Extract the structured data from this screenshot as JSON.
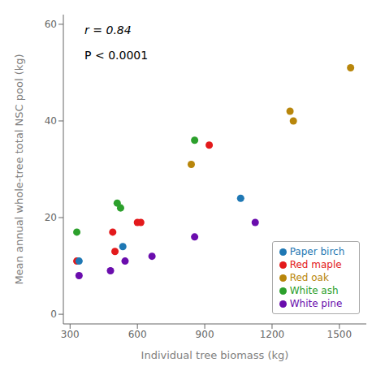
{
  "chart_data": {
    "type": "scatter",
    "xlabel": "Individual tree biomass (kg)",
    "ylabel": "Mean annual whole-tree total NSC pool (kg)",
    "annotations": [
      "r = 0.84",
      "P < 0.0001"
    ],
    "xlim": [
      270,
      1620
    ],
    "ylim": [
      -2,
      62
    ],
    "xticks": [
      300,
      600,
      900,
      1200,
      1500
    ],
    "yticks": [
      0,
      20,
      40,
      60
    ],
    "grid": false,
    "legend": "lower right",
    "series": [
      {
        "name": "Red oak",
        "color": "#b8860b",
        "x": [
          840,
          1280,
          1295,
          1550
        ],
        "values": [
          31,
          42,
          40,
          51
        ]
      },
      {
        "name": "White ash",
        "color": "#2ca02c",
        "x": [
          330,
          510,
          525,
          855
        ],
        "values": [
          17,
          23,
          22,
          36
        ]
      },
      {
        "name": "Red maple",
        "color": "#e31a1c",
        "x": [
          330,
          490,
          500,
          600,
          615,
          920
        ],
        "values": [
          11,
          17,
          13,
          19,
          19,
          35
        ]
      },
      {
        "name": "Paper birch",
        "color": "#1f78b4",
        "x": [
          340,
          535,
          1060
        ],
        "values": [
          11,
          14,
          24
        ]
      },
      {
        "name": "White pine",
        "color": "#6a0dad",
        "x": [
          340,
          480,
          545,
          665,
          855,
          1125
        ],
        "values": [
          8,
          9,
          11,
          12,
          16,
          19
        ]
      }
    ]
  }
}
